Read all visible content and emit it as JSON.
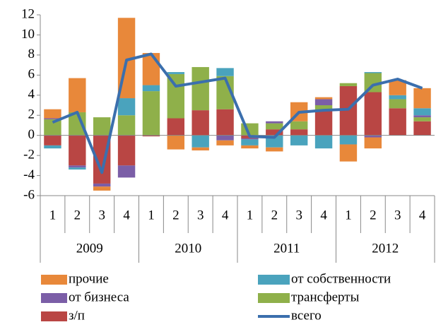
{
  "chart_data": {
    "type": "bar",
    "stacked": true,
    "categories": [
      "1",
      "2",
      "3",
      "4",
      "1",
      "2",
      "3",
      "4",
      "1",
      "2",
      "3",
      "4",
      "1",
      "2",
      "3",
      "4"
    ],
    "groups": [
      "2009",
      "2010",
      "2011",
      "2012"
    ],
    "ylim": [
      -6,
      12
    ],
    "yticks": [
      -6,
      -4,
      -2,
      0,
      2,
      4,
      6,
      8,
      10,
      12
    ],
    "series": [
      {
        "name": "з/п",
        "color": "#b94644",
        "values": [
          -1.0,
          -3.0,
          -4.8,
          -3.0,
          -0.1,
          1.7,
          2.5,
          2.6,
          -0.3,
          0.6,
          0.6,
          2.5,
          4.9,
          4.3,
          2.7,
          1.4
        ]
      },
      {
        "name": "трансферты",
        "color": "#8fb04a",
        "values": [
          1.6,
          2.3,
          1.8,
          2.0,
          4.4,
          4.4,
          4.3,
          3.3,
          1.2,
          0.6,
          0.8,
          0.5,
          0.3,
          1.9,
          0.9,
          0.4
        ]
      },
      {
        "name": "от бизнеса",
        "color": "#7b5ea7",
        "values": [
          0.1,
          -0.2,
          -0.3,
          -1.2,
          0,
          0,
          0,
          -0.5,
          -0.1,
          0.2,
          0,
          0.6,
          0,
          -0.2,
          0,
          0.2
        ]
      },
      {
        "name": "от собственности",
        "color": "#4aa3bd",
        "values": [
          -0.3,
          -0.2,
          0,
          1.7,
          0.6,
          0.2,
          -1.2,
          0.8,
          -0.6,
          -1.2,
          -1.0,
          -1.3,
          -0.9,
          0.1,
          0.4,
          0.7
        ]
      },
      {
        "name": "прочие",
        "color": "#e8883a",
        "values": [
          0.9,
          3.4,
          -0.4,
          8.0,
          3.2,
          -1.4,
          -0.3,
          -0.5,
          -0.3,
          -0.4,
          1.9,
          0.2,
          -1.7,
          -1.1,
          1.5,
          2.0
        ]
      },
      {
        "name": "всего",
        "type": "line",
        "color": "#3b6fad",
        "values": [
          1.3,
          2.3,
          -3.7,
          7.5,
          8.1,
          4.9,
          5.3,
          5.7,
          -0.1,
          -0.2,
          2.3,
          2.5,
          2.6,
          5.0,
          5.6,
          4.7
        ]
      }
    ]
  }
}
